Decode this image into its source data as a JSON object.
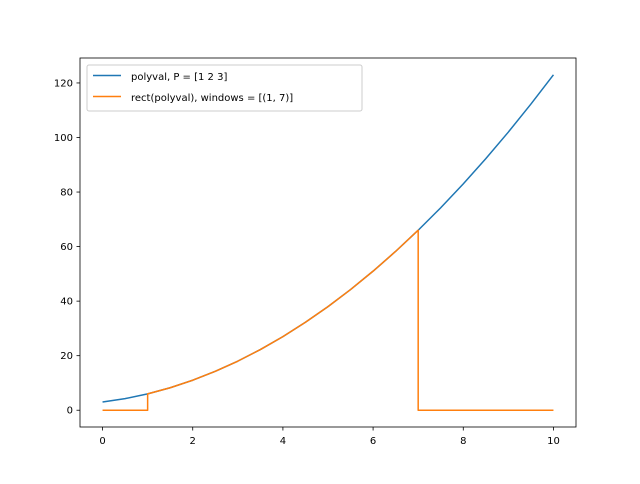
{
  "chart_data": {
    "type": "line",
    "title": "",
    "xlabel": "",
    "ylabel": "",
    "xlim": [
      -0.5,
      10.5
    ],
    "ylim": [
      -6.15,
      129.15
    ],
    "xticks": [
      0,
      2,
      4,
      6,
      8,
      10
    ],
    "yticks": [
      0,
      20,
      40,
      60,
      80,
      100,
      120
    ],
    "grid": false,
    "legend_placement": "upper-left",
    "series": [
      {
        "name": "polyval, P = [1 2 3]",
        "color": "#1f77b4",
        "x": [
          0,
          0.5,
          1,
          1.5,
          2,
          2.5,
          3,
          3.5,
          4,
          4.5,
          5,
          5.5,
          6,
          6.5,
          7,
          7.5,
          8,
          8.5,
          9,
          9.5,
          10
        ],
        "y": [
          3,
          4.25,
          6,
          8.25,
          11,
          14.25,
          18,
          22.25,
          27,
          32.25,
          38,
          44.25,
          51,
          58.25,
          66,
          74.25,
          83,
          92.25,
          102,
          112.25,
          123
        ]
      },
      {
        "name": "rect(polyval), windows = [(1, 7)]",
        "color": "#ff7f0e",
        "x": [
          0,
          1,
          1,
          1.5,
          2,
          2.5,
          3,
          3.5,
          4,
          4.5,
          5,
          5.5,
          6,
          6.5,
          7,
          7,
          10
        ],
        "y": [
          0,
          0,
          6,
          8.25,
          11,
          14.25,
          18,
          22.25,
          27,
          32.25,
          38,
          44.25,
          51,
          58.25,
          66,
          0,
          0
        ]
      }
    ]
  }
}
